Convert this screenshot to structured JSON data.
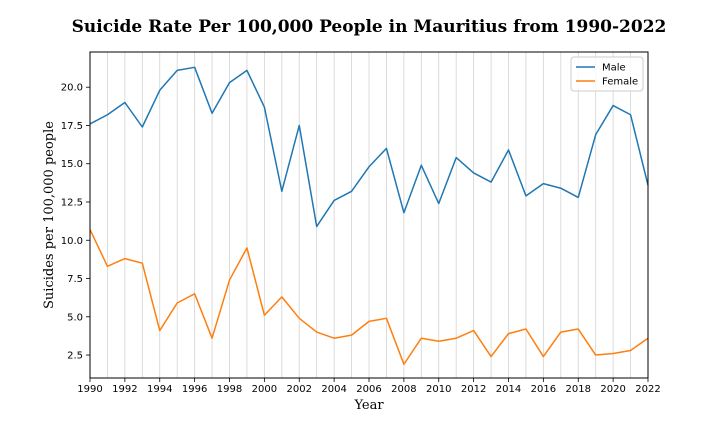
{
  "chart_data": {
    "type": "line",
    "title": "Suicide Rate Per 100,000 People in Mauritius from 1990-2022",
    "xlabel": "Year",
    "ylabel": "Suicides per 100,000 people",
    "xlim": [
      1990,
      2022
    ],
    "ylim": [
      1.0,
      22.3
    ],
    "x": [
      1990,
      1991,
      1992,
      1993,
      1994,
      1995,
      1996,
      1997,
      1998,
      1999,
      2000,
      2001,
      2002,
      2003,
      2004,
      2005,
      2006,
      2007,
      2008,
      2009,
      2010,
      2011,
      2012,
      2013,
      2014,
      2015,
      2016,
      2017,
      2018,
      2019,
      2020,
      2021,
      2022
    ],
    "x_ticks": [
      1990,
      1992,
      1994,
      1996,
      1998,
      2000,
      2002,
      2004,
      2006,
      2008,
      2010,
      2012,
      2014,
      2016,
      2018,
      2020,
      2022
    ],
    "x_tick_labels": [
      "1990",
      "1992",
      "1994",
      "1996",
      "1998",
      "2000",
      "2002",
      "2004",
      "2006",
      "2008",
      "2010",
      "2012",
      "2014",
      "2016",
      "2018",
      "2020",
      "2022"
    ],
    "y_ticks": [
      2.5,
      5.0,
      7.5,
      10.0,
      12.5,
      15.0,
      17.5,
      20.0
    ],
    "y_tick_labels": [
      "2.5",
      "5.0",
      "7.5",
      "10.0",
      "12.5",
      "15.0",
      "17.5",
      "20.0"
    ],
    "grid": "vertical",
    "legend_position": "top-right",
    "series": [
      {
        "name": "Male",
        "color": "#1f77b4",
        "values": [
          17.6,
          18.2,
          19.0,
          17.4,
          19.8,
          21.1,
          21.3,
          18.3,
          20.3,
          21.1,
          18.7,
          13.2,
          17.5,
          10.9,
          12.6,
          13.2,
          14.8,
          16.0,
          11.8,
          14.9,
          12.4,
          15.4,
          14.4,
          13.8,
          15.9,
          12.9,
          13.7,
          13.4,
          12.8,
          16.9,
          18.8,
          18.2,
          13.6
        ]
      },
      {
        "name": "Female",
        "color": "#ff7f0e",
        "values": [
          10.7,
          8.3,
          8.8,
          8.5,
          4.1,
          5.9,
          6.5,
          3.6,
          7.4,
          9.5,
          5.1,
          6.3,
          4.9,
          4.0,
          3.6,
          3.8,
          4.7,
          4.9,
          1.9,
          3.6,
          3.4,
          3.6,
          4.1,
          2.4,
          3.9,
          4.2,
          2.4,
          4.0,
          4.2,
          2.5,
          2.6,
          2.8,
          3.6
        ]
      }
    ]
  }
}
